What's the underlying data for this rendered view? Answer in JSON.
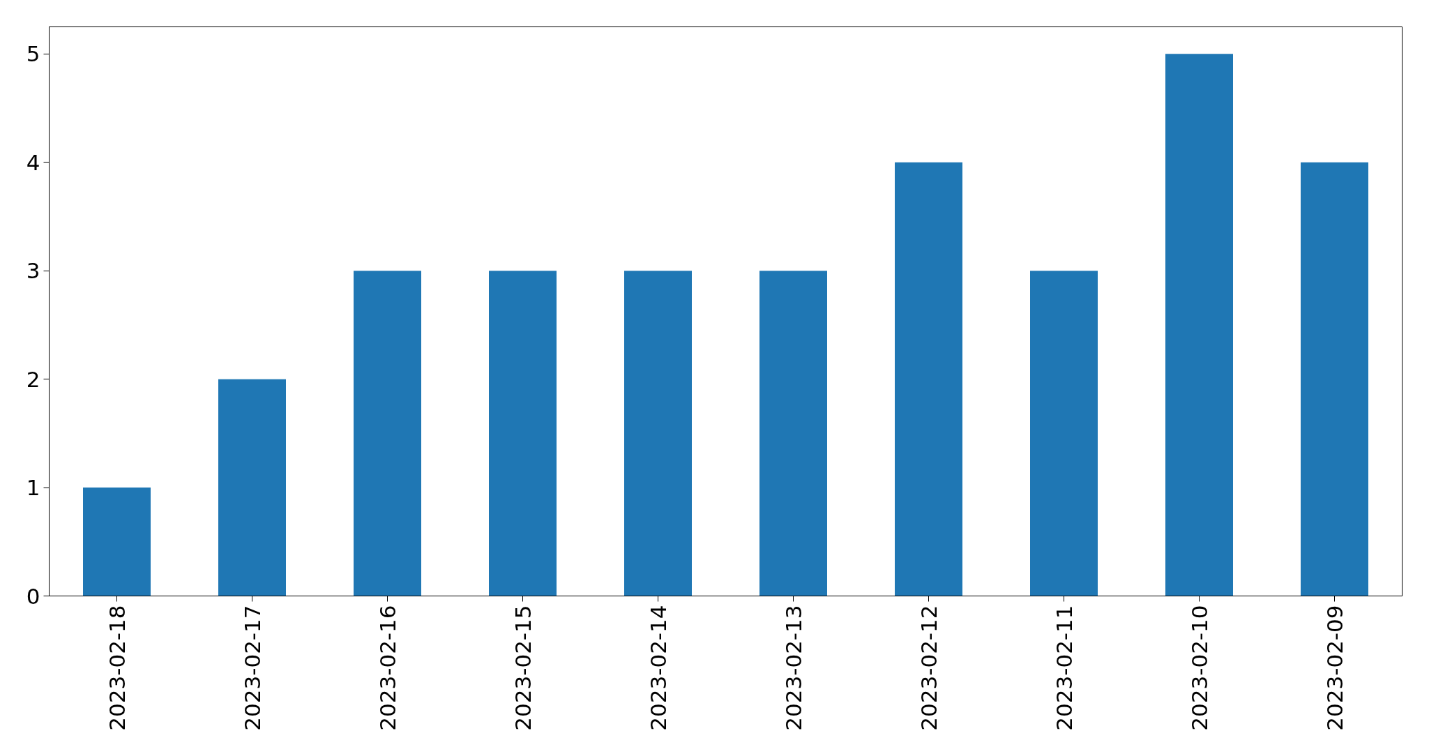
{
  "chart_data": {
    "type": "bar",
    "categories": [
      "2023-02-18",
      "2023-02-17",
      "2023-02-16",
      "2023-02-15",
      "2023-02-14",
      "2023-02-13",
      "2023-02-12",
      "2023-02-11",
      "2023-02-10",
      "2023-02-09"
    ],
    "values": [
      1,
      2,
      3,
      3,
      3,
      3,
      4,
      3,
      5,
      4
    ],
    "color": "#1f77b4",
    "ylim": [
      0,
      5.25
    ],
    "yticks": [
      0,
      1,
      2,
      3,
      4,
      5
    ],
    "grid": false
  }
}
